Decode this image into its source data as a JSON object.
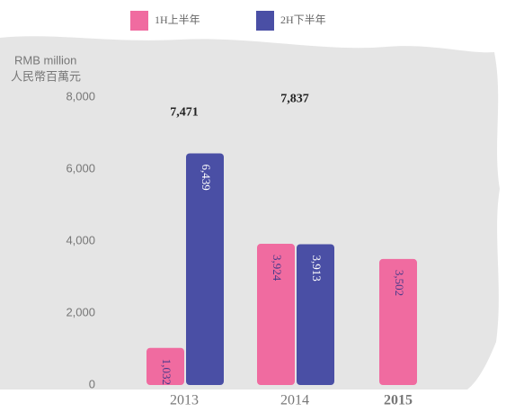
{
  "chart_data": {
    "type": "bar",
    "ylabel": [
      "RMB million",
      "人民幣百萬元"
    ],
    "categories": [
      "2013",
      "2014",
      "2015"
    ],
    "series": [
      {
        "name": "1H上半年",
        "color": "#f06ba0",
        "values": [
          1032,
          3924,
          3502
        ],
        "value_labels": [
          "1,032",
          "3,924",
          "3,502"
        ]
      },
      {
        "name": "2H下半年",
        "color": "#4a4fa5",
        "values": [
          6439,
          3913,
          null
        ],
        "value_labels": [
          "6,439",
          "3,913",
          null
        ]
      }
    ],
    "totals": {
      "values": [
        7471,
        7837,
        null
      ],
      "value_labels": [
        "7,471",
        "7,837",
        null
      ]
    },
    "ylim": [
      0,
      8000
    ],
    "yticks": [
      0,
      {
        "value": 2000,
        "label": "2,000"
      },
      {
        "value": 4000,
        "label": "4,000"
      },
      {
        "value": 6000,
        "label": "6,000"
      },
      {
        "value": 8000,
        "label": "8,000"
      }
    ],
    "legend": "top"
  }
}
